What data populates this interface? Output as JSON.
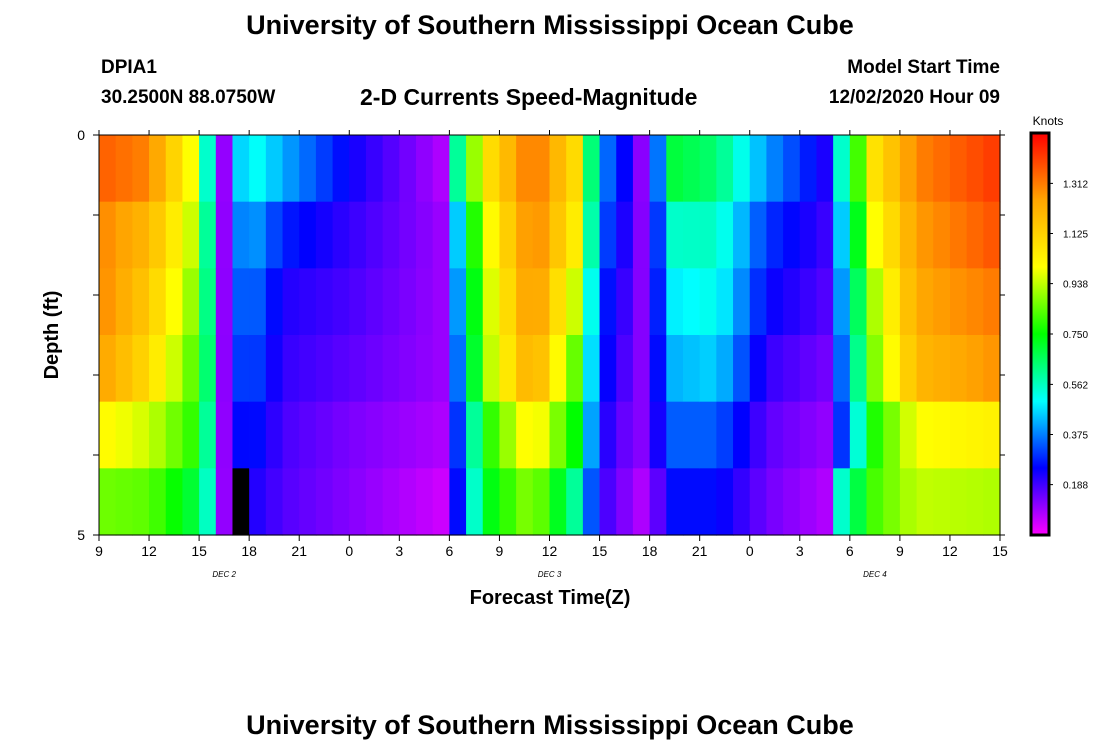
{
  "header": {
    "title": "University of Southern Mississippi Ocean Cube",
    "station": "DPIA1",
    "coordinates": "30.2500N 88.0750W",
    "subtitle": "2-D Currents Speed-Magnitude",
    "start_label": "Model Start Time",
    "start_value": "12/02/2020 Hour 09"
  },
  "footer": {
    "title": "University of Southern Mississippi Ocean Cube"
  },
  "chart_data": {
    "type": "heatmap",
    "title": "2-D Currents Speed-Magnitude",
    "xlabel": "Forecast Time(Z)",
    "ylabel": "Depth (ft)",
    "colorbar_label": "Knots",
    "colorbar_ticks": [
      "0.188",
      "0.375",
      "0.562",
      "0.750",
      "0.938",
      "1.125",
      "1.312"
    ],
    "colorbar_range": [
      0,
      1.5
    ],
    "x_tick_labels": [
      "9",
      "12",
      "15",
      "18",
      "21",
      "0",
      "3",
      "6",
      "9",
      "12",
      "15",
      "18",
      "21",
      "0",
      "3",
      "6",
      "9",
      "12",
      "15"
    ],
    "day_labels": [
      {
        "label": "DEC 2",
        "hour_offset": 7.5
      },
      {
        "label": "DEC 3",
        "hour_offset": 27
      },
      {
        "label": "DEC 4",
        "hour_offset": 46.5
      }
    ],
    "y_tick_labels": [
      "0",
      "5"
    ],
    "ylim": [
      0,
      5
    ],
    "x_range_hours": [
      0,
      54
    ],
    "depth_layers": 6,
    "keyframes": [
      {
        "h": 0,
        "s": [
          1.36,
          1.3,
          1.3,
          1.26,
          1.02,
          0.86
        ]
      },
      {
        "h": 3,
        "s": [
          1.3,
          1.2,
          1.15,
          1.1,
          0.95,
          0.84
        ]
      },
      {
        "h": 5.5,
        "s": [
          1.0,
          0.95,
          0.9,
          0.85,
          0.8,
          0.7
        ]
      },
      {
        "h": 6.5,
        "s": [
          0.55,
          0.6,
          0.62,
          0.64,
          0.6,
          0.56
        ]
      },
      {
        "h": 7.6,
        "s": [
          0.06,
          0.06,
          0.06,
          0.06,
          0.06,
          0.06
        ]
      },
      {
        "h": 8.7,
        "s": [
          0.55,
          0.45,
          0.4,
          0.36,
          0.3,
          0.24
        ]
      },
      {
        "h": 11,
        "s": [
          0.42,
          0.28,
          0.22,
          0.2,
          0.18,
          0.17
        ]
      },
      {
        "h": 15,
        "s": [
          0.24,
          0.2,
          0.18,
          0.16,
          0.13,
          0.12
        ]
      },
      {
        "h": 20.5,
        "s": [
          0.08,
          0.1,
          0.1,
          0.1,
          0.08,
          0.05
        ]
      },
      {
        "h": 21.5,
        "s": [
          0.6,
          0.45,
          0.4,
          0.36,
          0.3,
          0.26
        ]
      },
      {
        "h": 23,
        "s": [
          1.05,
          0.95,
          0.9,
          0.88,
          0.75,
          0.7
        ]
      },
      {
        "h": 26,
        "s": [
          1.34,
          1.32,
          1.3,
          1.25,
          1.05,
          0.9
        ]
      },
      {
        "h": 28.5,
        "s": [
          1.1,
          1.05,
          0.95,
          0.85,
          0.75,
          0.6
        ]
      },
      {
        "h": 30,
        "s": [
          0.4,
          0.35,
          0.3,
          0.28,
          0.24,
          0.2
        ]
      },
      {
        "h": 32,
        "s": [
          0.2,
          0.18,
          0.16,
          0.14,
          0.12,
          0.1
        ]
      },
      {
        "h": 33,
        "s": [
          0.03,
          0.06,
          0.08,
          0.1,
          0.12,
          0.06
        ]
      },
      {
        "h": 34,
        "s": [
          0.7,
          0.55,
          0.48,
          0.42,
          0.34,
          0.26
        ]
      },
      {
        "h": 37,
        "s": [
          0.64,
          0.56,
          0.52,
          0.46,
          0.34,
          0.26
        ]
      },
      {
        "h": 40,
        "s": [
          0.4,
          0.3,
          0.25,
          0.2,
          0.16,
          0.14
        ]
      },
      {
        "h": 44,
        "s": [
          0.2,
          0.18,
          0.16,
          0.13,
          0.1,
          0.07
        ]
      },
      {
        "h": 44.5,
        "s": [
          0.55,
          0.45,
          0.4,
          0.35,
          0.3,
          0.55
        ]
      },
      {
        "h": 46.5,
        "s": [
          1.08,
          1.0,
          0.92,
          0.88,
          0.78,
          0.82
        ]
      },
      {
        "h": 49,
        "s": [
          1.3,
          1.26,
          1.24,
          1.2,
          1.0,
          0.94
        ]
      },
      {
        "h": 54,
        "s": [
          1.42,
          1.38,
          1.32,
          1.28,
          1.04,
          0.92
        ]
      }
    ],
    "missing_cell": {
      "hour": 8,
      "layer": 5
    },
    "colors": {
      "background": "#ffffff",
      "frame": "#000000",
      "missing": "#000000",
      "scale": [
        "#ff00ff",
        "#0000ff",
        "#00ffff",
        "#00ff00",
        "#ffff00",
        "#ffa500",
        "#ff0000"
      ]
    }
  }
}
